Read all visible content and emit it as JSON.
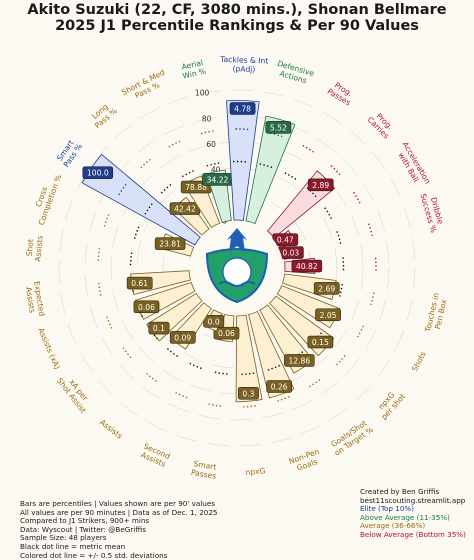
{
  "title": "Akito Suzuki (22, CF, 3080 mins.), Shonan Bellmare",
  "subtitle": "2025 J1 Percentile Rankings & Per 90 Values",
  "chart_data": {
    "type": "radial-bar",
    "rlim": [
      0,
      100
    ],
    "ticks": [
      "0",
      "20",
      "40",
      "60",
      "80",
      "100"
    ],
    "metrics": [
      {
        "label": "Cross\nCompletion %",
        "percentile": 24,
        "value": "23.81",
        "group": "Passing"
      },
      {
        "label": "Smart\nPass %",
        "percentile": 99,
        "value": "100.0",
        "group": "Elite"
      },
      {
        "label": "Long\nPass %",
        "percentile": 30,
        "value": "42.42",
        "group": "Passing"
      },
      {
        "label": "Short & Med\nPass %",
        "percentile": 39,
        "value": "78.88",
        "group": "Passing"
      },
      {
        "label": "Aerial\nWin %",
        "percentile": 39,
        "value": "34.22",
        "group": "Defending"
      },
      {
        "label": "Tackles & Int\n(pAdj)",
        "percentile": 92,
        "value": "4.78",
        "group": "Elite"
      },
      {
        "label": "Defensive\nActions",
        "percentile": 82,
        "value": "5.52",
        "group": "Defending"
      },
      {
        "label": "Prog.\nPasses",
        "percentile": 0,
        "value": "",
        "group": "Carrying"
      },
      {
        "label": "Prog.\nCarries",
        "percentile": 60,
        "value": "2.89",
        "group": "Carrying"
      },
      {
        "label": "Acceleration\nwith Ball",
        "percentile": 12,
        "value": "0.47",
        "group": "Carrying"
      },
      {
        "label": "Dribble\nSuccess %",
        "percentile": 6,
        "value": "0.03",
        "group": "Carrying"
      },
      {
        "label": "",
        "percentile": 23,
        "value": "40.82",
        "group": "Carrying"
      },
      {
        "label": "Touches in\nPen Box",
        "percentile": 40,
        "value": "2.69",
        "group": "Shooting"
      },
      {
        "label": "Shots",
        "percentile": 48,
        "value": "2.05",
        "group": "Shooting"
      },
      {
        "label": "npxG\nper shot",
        "percentile": 55,
        "value": "0.15",
        "group": "Shooting"
      },
      {
        "label": "Goals/Shot\non Target %",
        "percentile": 55,
        "value": "12.86",
        "group": "Shooting"
      },
      {
        "label": "Non-Pen\nGoals",
        "percentile": 66,
        "value": "0.26",
        "group": "Shooting"
      },
      {
        "label": "npxG",
        "percentile": 66,
        "value": "0.3",
        "group": "Shooting"
      },
      {
        "label": "Smart\nPasses",
        "percentile": 20,
        "value": "0.06",
        "group": "Creating"
      },
      {
        "label": "Second\nAssists",
        "percentile": 14,
        "value": "0.0",
        "group": "Creating"
      },
      {
        "label": "Assists",
        "percentile": 37,
        "value": "0.09",
        "group": "Creating"
      },
      {
        "label": "xA per\nShot Assist",
        "percentile": 45,
        "value": "0.1",
        "group": "Creating"
      },
      {
        "label": "Assists (xA)",
        "percentile": 45,
        "value": "0.06",
        "group": "Creating"
      },
      {
        "label": "Expected\nAssists",
        "percentile": 45,
        "value": "0.61",
        "group": "Creating"
      },
      {
        "label": "Shot\nAssists",
        "percentile": 0,
        "value": "",
        "group": "Creating"
      }
    ]
  },
  "colors": {
    "elite_fill": "#d8e1f7",
    "elite_edge": "#1f3c8c",
    "elite_label": "#1c3a9c",
    "above_fill": "#d6f0e0",
    "above_edge": "#2a6b46",
    "above_label": "#1f7a3c",
    "average_fill": "#fdf0d2",
    "average_edge": "#7a6020",
    "average_label": "#9a6b10",
    "below_fill": "#fadbe0",
    "below_edge": "#8a1a2a",
    "below_label": "#b01628"
  },
  "footer_left": [
    "Bars are percentiles | Values shown are per 90' values",
    "All values are per 90 minutes | Data as of Dec. 1, 2025",
    "Compared to J1 Strikers, 900+ mins",
    "Data: Wyscout | Twitter: @BeGriffis",
    "Sample Size: 48 players",
    "Black dot line = metric mean",
    "Colored dot line = +/- 0.5 std. deviations"
  ],
  "footer_right": {
    "credit": "Created by Ben Griffis",
    "site": "best11scouting.streamlit.app",
    "legend": [
      {
        "label": "Elite (Top 10%)",
        "color_key": "elite_label"
      },
      {
        "label": "Above Average (11-35%)",
        "color_key": "above_label"
      },
      {
        "label": "Average (36-66%)",
        "color_key": "average_label"
      },
      {
        "label": "Below Average (Bottom 35%)",
        "color_key": "below_label"
      }
    ]
  },
  "center_logo": {
    "name": "shonan-bellmare-crest",
    "colors": [
      "#23a06a",
      "#1c5fb4",
      "#ffffff"
    ]
  }
}
